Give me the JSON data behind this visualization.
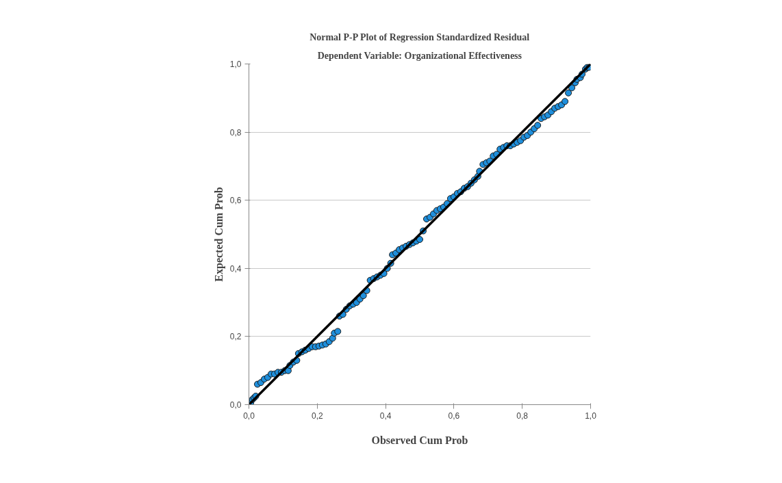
{
  "chart_data": {
    "type": "scatter",
    "title": "Normal P-P Plot of Regression Standardized Residual",
    "subtitle": "Dependent Variable: Organizational Effectiveness",
    "xlabel": "Observed Cum Prob",
    "ylabel": "Expected Cum Prob",
    "xlim": [
      0,
      1
    ],
    "ylim": [
      0,
      1
    ],
    "xticks": [
      {
        "value": 0,
        "label": "0,0"
      },
      {
        "value": 0.2,
        "label": "0,2"
      },
      {
        "value": 0.4,
        "label": "0,4"
      },
      {
        "value": 0.6,
        "label": "0,6"
      },
      {
        "value": 0.8,
        "label": "0,8"
      },
      {
        "value": 1,
        "label": "1,0"
      }
    ],
    "yticks": [
      {
        "value": 0,
        "label": "0,0"
      },
      {
        "value": 0.2,
        "label": "0,2"
      },
      {
        "value": 0.4,
        "label": "0,4"
      },
      {
        "value": 0.6,
        "label": "0,6"
      },
      {
        "value": 0.8,
        "label": "0,8"
      },
      {
        "value": 1,
        "label": "1,0"
      }
    ],
    "grid": "y",
    "series": [
      {
        "color": "#1f8fdc",
        "marker": "circle",
        "x": [
          0.005,
          0.01,
          0.015,
          0.02,
          0.025,
          0.035,
          0.045,
          0.055,
          0.065,
          0.075,
          0.085,
          0.095,
          0.105,
          0.115,
          0.12,
          0.13,
          0.14,
          0.145,
          0.155,
          0.165,
          0.175,
          0.185,
          0.195,
          0.205,
          0.215,
          0.225,
          0.235,
          0.245,
          0.25,
          0.26,
          0.265,
          0.275,
          0.285,
          0.295,
          0.305,
          0.315,
          0.325,
          0.335,
          0.345,
          0.355,
          0.365,
          0.375,
          0.385,
          0.395,
          0.405,
          0.415,
          0.42,
          0.43,
          0.44,
          0.45,
          0.46,
          0.47,
          0.48,
          0.49,
          0.5,
          0.51,
          0.52,
          0.53,
          0.54,
          0.55,
          0.56,
          0.57,
          0.58,
          0.59,
          0.6,
          0.61,
          0.62,
          0.63,
          0.64,
          0.65,
          0.66,
          0.67,
          0.675,
          0.685,
          0.695,
          0.705,
          0.715,
          0.725,
          0.735,
          0.745,
          0.755,
          0.765,
          0.775,
          0.785,
          0.795,
          0.805,
          0.815,
          0.825,
          0.835,
          0.845,
          0.855,
          0.865,
          0.875,
          0.885,
          0.895,
          0.905,
          0.915,
          0.925,
          0.935,
          0.945,
          0.955,
          0.96,
          0.97,
          0.975,
          0.985,
          0.99,
          0.995
        ],
        "values": [
          0.005,
          0.015,
          0.02,
          0.025,
          0.06,
          0.065,
          0.075,
          0.08,
          0.09,
          0.09,
          0.095,
          0.095,
          0.1,
          0.1,
          0.115,
          0.125,
          0.13,
          0.15,
          0.155,
          0.16,
          0.165,
          0.17,
          0.17,
          0.172,
          0.175,
          0.178,
          0.185,
          0.195,
          0.21,
          0.215,
          0.26,
          0.265,
          0.28,
          0.29,
          0.295,
          0.3,
          0.31,
          0.32,
          0.335,
          0.365,
          0.37,
          0.375,
          0.38,
          0.385,
          0.4,
          0.415,
          0.44,
          0.445,
          0.455,
          0.46,
          0.465,
          0.47,
          0.475,
          0.48,
          0.485,
          0.51,
          0.545,
          0.55,
          0.56,
          0.57,
          0.575,
          0.58,
          0.59,
          0.605,
          0.61,
          0.62,
          0.625,
          0.635,
          0.64,
          0.65,
          0.66,
          0.67,
          0.685,
          0.705,
          0.71,
          0.715,
          0.73,
          0.735,
          0.75,
          0.755,
          0.76,
          0.76,
          0.765,
          0.77,
          0.775,
          0.785,
          0.79,
          0.8,
          0.81,
          0.82,
          0.84,
          0.845,
          0.85,
          0.86,
          0.87,
          0.875,
          0.88,
          0.89,
          0.915,
          0.93,
          0.945,
          0.955,
          0.96,
          0.97,
          0.985,
          0.99,
          0.99
        ]
      },
      {
        "type": "line",
        "color": "#000000",
        "line_style": "solid",
        "marker": "none",
        "x": [
          0,
          1
        ],
        "values": [
          0,
          1
        ]
      }
    ]
  }
}
